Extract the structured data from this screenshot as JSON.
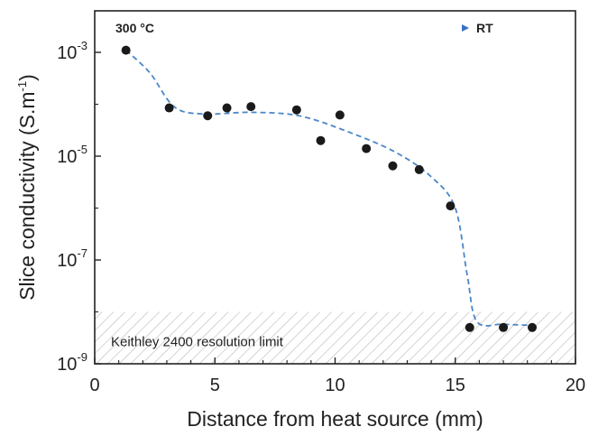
{
  "chart_data": {
    "type": "scatter",
    "xlabel": "Distance from heat source (mm)",
    "ylabel": "Slice conductivity (S.m",
    "ylabel_sup": "-1",
    "ylabel_close": ")",
    "xlim": [
      0,
      20
    ],
    "ylim_exp": [
      -9,
      -2.2
    ],
    "yscale": "log",
    "x_ticks": [
      "0",
      "5",
      "10",
      "15",
      "20"
    ],
    "y_ticks": [
      {
        "base": "10",
        "exp": "-3",
        "value_exp": -3
      },
      {
        "base": "10",
        "exp": "-5",
        "value_exp": -5
      },
      {
        "base": "10",
        "exp": "-7",
        "value_exp": -7
      },
      {
        "base": "10",
        "exp": "-9",
        "value_exp": -9
      }
    ],
    "points": [
      {
        "x": 1.3,
        "y": 0.0011
      },
      {
        "x": 3.1,
        "y": 8.5e-05
      },
      {
        "x": 4.7,
        "y": 6e-05
      },
      {
        "x": 5.5,
        "y": 8.5e-05
      },
      {
        "x": 6.5,
        "y": 9e-05
      },
      {
        "x": 8.4,
        "y": 7.8e-05
      },
      {
        "x": 9.4,
        "y": 2e-05
      },
      {
        "x": 10.2,
        "y": 6.2e-05
      },
      {
        "x": 11.3,
        "y": 1.4e-05
      },
      {
        "x": 12.4,
        "y": 6.5e-06
      },
      {
        "x": 13.5,
        "y": 5.5e-06
      },
      {
        "x": 14.8,
        "y": 1.1e-06
      },
      {
        "x": 15.6,
        "y": 5e-09
      },
      {
        "x": 17.0,
        "y": 5e-09
      },
      {
        "x": 18.2,
        "y": 5e-09
      }
    ],
    "trend": [
      {
        "x": 1.3,
        "y": 0.0011
      },
      {
        "x": 2.3,
        "y": 0.0004
      },
      {
        "x": 3.3,
        "y": 9e-05
      },
      {
        "x": 4.5,
        "y": 6.5e-05
      },
      {
        "x": 6.5,
        "y": 7e-05
      },
      {
        "x": 8.5,
        "y": 6e-05
      },
      {
        "x": 10.5,
        "y": 3e-05
      },
      {
        "x": 12.5,
        "y": 1.2e-05
      },
      {
        "x": 14.0,
        "y": 4e-06
      },
      {
        "x": 15.0,
        "y": 1e-06
      },
      {
        "x": 15.5,
        "y": 5e-08
      },
      {
        "x": 15.9,
        "y": 6.5e-09
      },
      {
        "x": 17.0,
        "y": 5.8e-09
      },
      {
        "x": 18.2,
        "y": 5.5e-09
      }
    ],
    "annotations": {
      "hot_label": "300 °C",
      "cold_label": "RT",
      "gradient_colors": [
        "#e8302a",
        "#8a3a9a",
        "#3a6fc4"
      ],
      "limit_label": "Keithley 2400 resolution limit",
      "limit_upper": 1e-08
    },
    "colors": {
      "points": "#1a1a1a",
      "trend": "#4a86c8",
      "hatch": "#b8b8b8"
    },
    "grid": false,
    "legend": "none"
  }
}
